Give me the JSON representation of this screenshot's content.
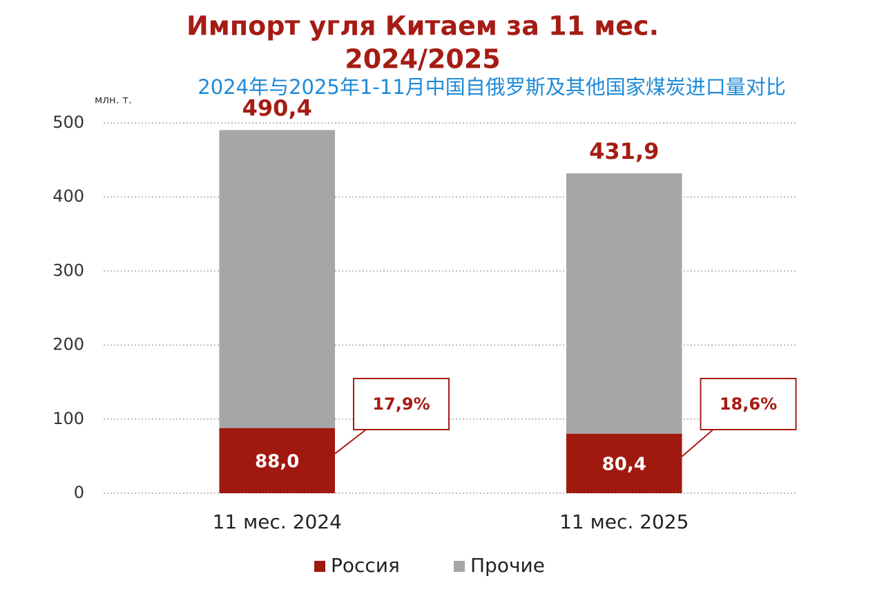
{
  "chart_data": {
    "type": "stacked_bar",
    "title": [
      "Импорт угля Китаем за 11 мес.",
      "2024/2025"
    ],
    "subtitle": "2024年与2025年1-11月中国自俄罗斯及其他国家煤炭进口量对比",
    "y_label": "млн. т.",
    "categories": [
      "11 мес. 2024",
      "11 мес. 2025"
    ],
    "series": [
      {
        "name": "Россия",
        "color": "#a0190f",
        "values": [
          88.0,
          80.4
        ],
        "value_labels": [
          "88,0",
          "80,4"
        ]
      },
      {
        "name": "Прочие",
        "color": "#a6a6a6",
        "values": [
          402.4,
          351.5
        ]
      }
    ],
    "totals": [
      490.4,
      431.9
    ],
    "total_labels": [
      "490,4",
      "431,9"
    ],
    "shares": [
      17.9,
      18.6
    ],
    "share_labels": [
      "17,9%",
      "18,6%"
    ],
    "ylim": [
      0,
      500
    ],
    "yticks": [
      0,
      100,
      200,
      300,
      400,
      500
    ],
    "grid": true
  }
}
